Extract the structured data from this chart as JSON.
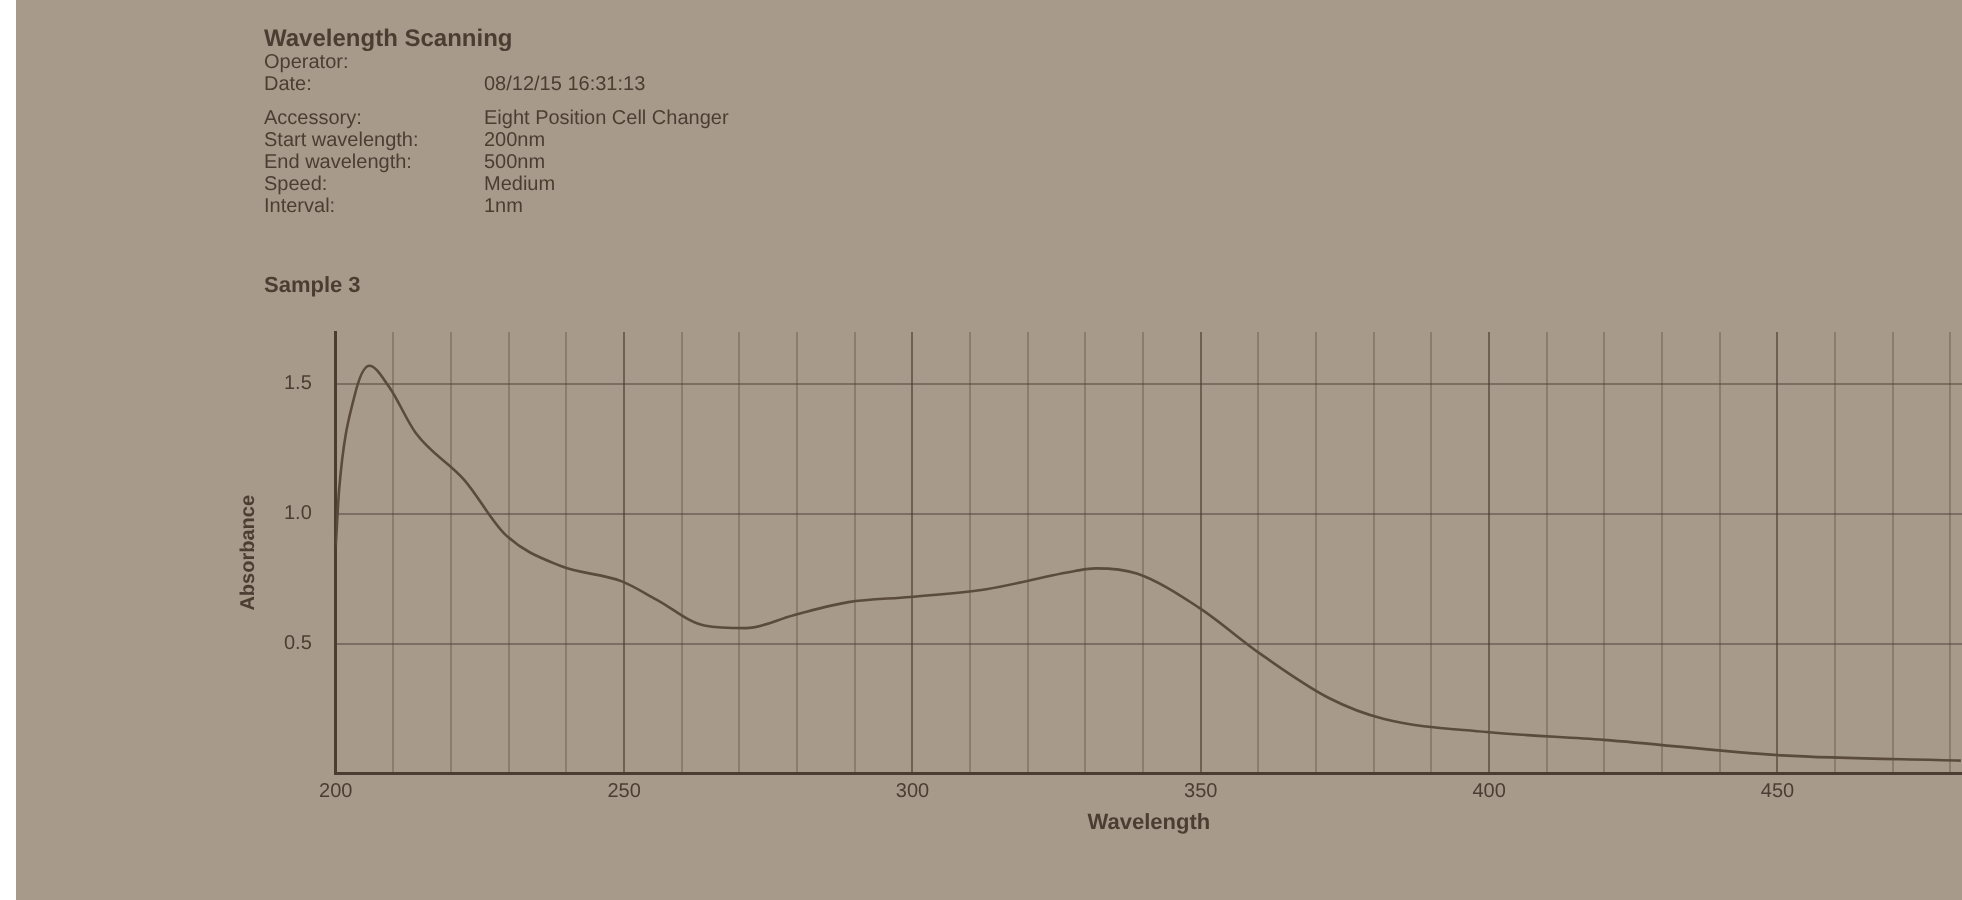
{
  "chart_data": {
    "type": "line",
    "title": "Wavelength Scanning",
    "subtitle": "Sample 3",
    "xlabel": "Wavelength",
    "ylabel": "Absorbance",
    "annotations": [
      "Operator:",
      "Date: 08/12/15 16:31:13",
      "Accessory: Eight Position Cell Changer",
      "Start wavelength: 200nm",
      "End wavelength: 500nm",
      "Speed: Medium",
      "Interval: 1nm"
    ],
    "x": [
      200,
      200.6,
      203.2,
      205.8,
      209.2,
      213.9,
      222.3,
      229.4,
      238.9,
      249.6,
      255.6,
      263.9,
      271.1,
      279.4,
      288.9,
      299.6,
      312.8,
      328.2,
      331.8,
      338.9,
      349.6,
      360.4,
      372.3,
      381.8,
      399.6,
      419.9,
      450.8,
      481.8
    ],
    "series": [
      {
        "color": "#5a4b3d",
        "values": [
          0.88,
          1.1,
          1.45,
          1.57,
          1.49,
          1.31,
          1.13,
          0.92,
          0.8,
          0.74,
          0.67,
          0.57,
          0.56,
          0.61,
          0.66,
          0.68,
          0.71,
          0.78,
          0.79,
          0.77,
          0.64,
          0.46,
          0.29,
          0.21,
          0.16,
          0.13,
          0.07,
          0.05
        ]
      }
    ],
    "xlim": [
      200,
      482
    ],
    "ylim": [
      0,
      1.7
    ],
    "xticks": [
      200,
      {
        "value": 210,
        "label": null
      },
      {
        "value": 220,
        "label": null
      },
      {
        "value": 230,
        "label": null
      },
      {
        "value": 240,
        "label": null
      },
      250,
      {
        "value": 260,
        "label": null
      },
      {
        "value": 270,
        "label": null
      },
      {
        "value": 280,
        "label": null
      },
      {
        "value": 290,
        "label": null
      },
      300,
      {
        "value": 310,
        "label": null
      },
      {
        "value": 320,
        "label": null
      },
      {
        "value": 330,
        "label": null
      },
      {
        "value": 340,
        "label": null
      },
      350,
      {
        "value": 360,
        "label": null
      },
      {
        "value": 370,
        "label": null
      },
      {
        "value": 380,
        "label": null
      },
      {
        "value": 390,
        "label": null
      },
      400,
      {
        "value": 410,
        "label": null
      },
      {
        "value": 420,
        "label": null
      },
      {
        "value": 430,
        "label": null
      },
      {
        "value": 440,
        "label": null
      },
      450,
      {
        "value": 460,
        "label": null
      },
      {
        "value": 470,
        "label": null
      },
      {
        "value": 480,
        "label": null
      }
    ],
    "yticks": [
      {
        "value": 0.5,
        "label": "0.5"
      },
      {
        "value": 1,
        "label": "1.0"
      },
      {
        "value": 1.5,
        "label": "1.5"
      }
    ],
    "grid": true,
    "legend": false,
    "marker": "none",
    "line_style": "solid"
  }
}
